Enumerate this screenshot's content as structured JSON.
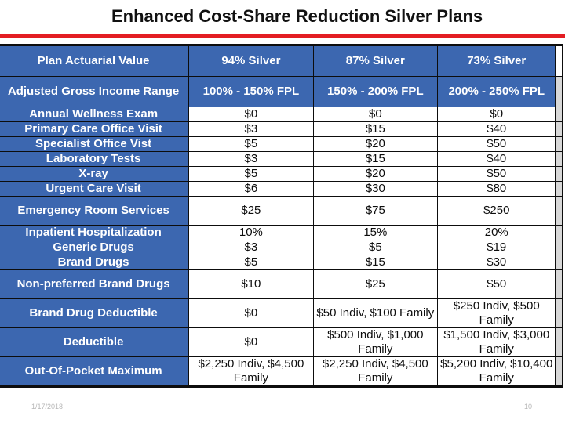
{
  "title": "Enhanced Cost-Share Reduction Silver Plans",
  "colors": {
    "header_blue": "#3c67b0",
    "title_rule": "#e31d23"
  },
  "header": {
    "label": "Plan Actuarial Value",
    "columns": [
      "94% Silver",
      "87% Silver",
      "73% Silver"
    ]
  },
  "rows": [
    {
      "label": "Adjusted Gross Income Range",
      "values": [
        "100% - 150% FPL",
        "150% - 200% FPL",
        "200% - 250% FPL"
      ],
      "style": "hdr"
    },
    {
      "label": "Annual Wellness Exam",
      "values": [
        "$0",
        "$0",
        "$0"
      ]
    },
    {
      "label": "Primary Care Office Visit",
      "values": [
        "$3",
        "$15",
        "$40"
      ]
    },
    {
      "label": "Specialist Office Vist",
      "values": [
        "$5",
        "$20",
        "$50"
      ]
    },
    {
      "label": "Laboratory Tests",
      "values": [
        "$3",
        "$15",
        "$40"
      ]
    },
    {
      "label": "X-ray",
      "values": [
        "$5",
        "$20",
        "$50"
      ]
    },
    {
      "label": "Urgent Care Visit",
      "values": [
        "$6",
        "$30",
        "$80"
      ]
    },
    {
      "label": "Emergency Room Services",
      "values": [
        "$25",
        "$75",
        "$250"
      ]
    },
    {
      "label": "Inpatient Hospitalization",
      "values": [
        "10%",
        "15%",
        "20%"
      ]
    },
    {
      "label": "Generic Drugs",
      "values": [
        "$3",
        "$5",
        "$19"
      ]
    },
    {
      "label": "Brand Drugs",
      "values": [
        "$5",
        "$15",
        "$30"
      ]
    },
    {
      "label": "Non-preferred Brand Drugs",
      "values": [
        "$10",
        "$25",
        "$50"
      ]
    },
    {
      "label": "Brand Drug Deductible",
      "values": [
        "$0",
        "$50 Indiv, $100 Family",
        "$250 Indiv, $500 Family"
      ]
    },
    {
      "label": "Deductible",
      "values": [
        "$0",
        "$500 Indiv, $1,000 Family",
        "$1,500 Indiv, $3,000 Family"
      ]
    },
    {
      "label": "Out-Of-Pocket Maximum",
      "values": [
        "$2,250 Indiv, $4,500 Family",
        "$2,250 Indiv, $4,500 Family",
        "$5,200 Indiv, $10,400 Family"
      ]
    }
  ],
  "footer": {
    "date": "1/17/2018",
    "page": "10"
  }
}
